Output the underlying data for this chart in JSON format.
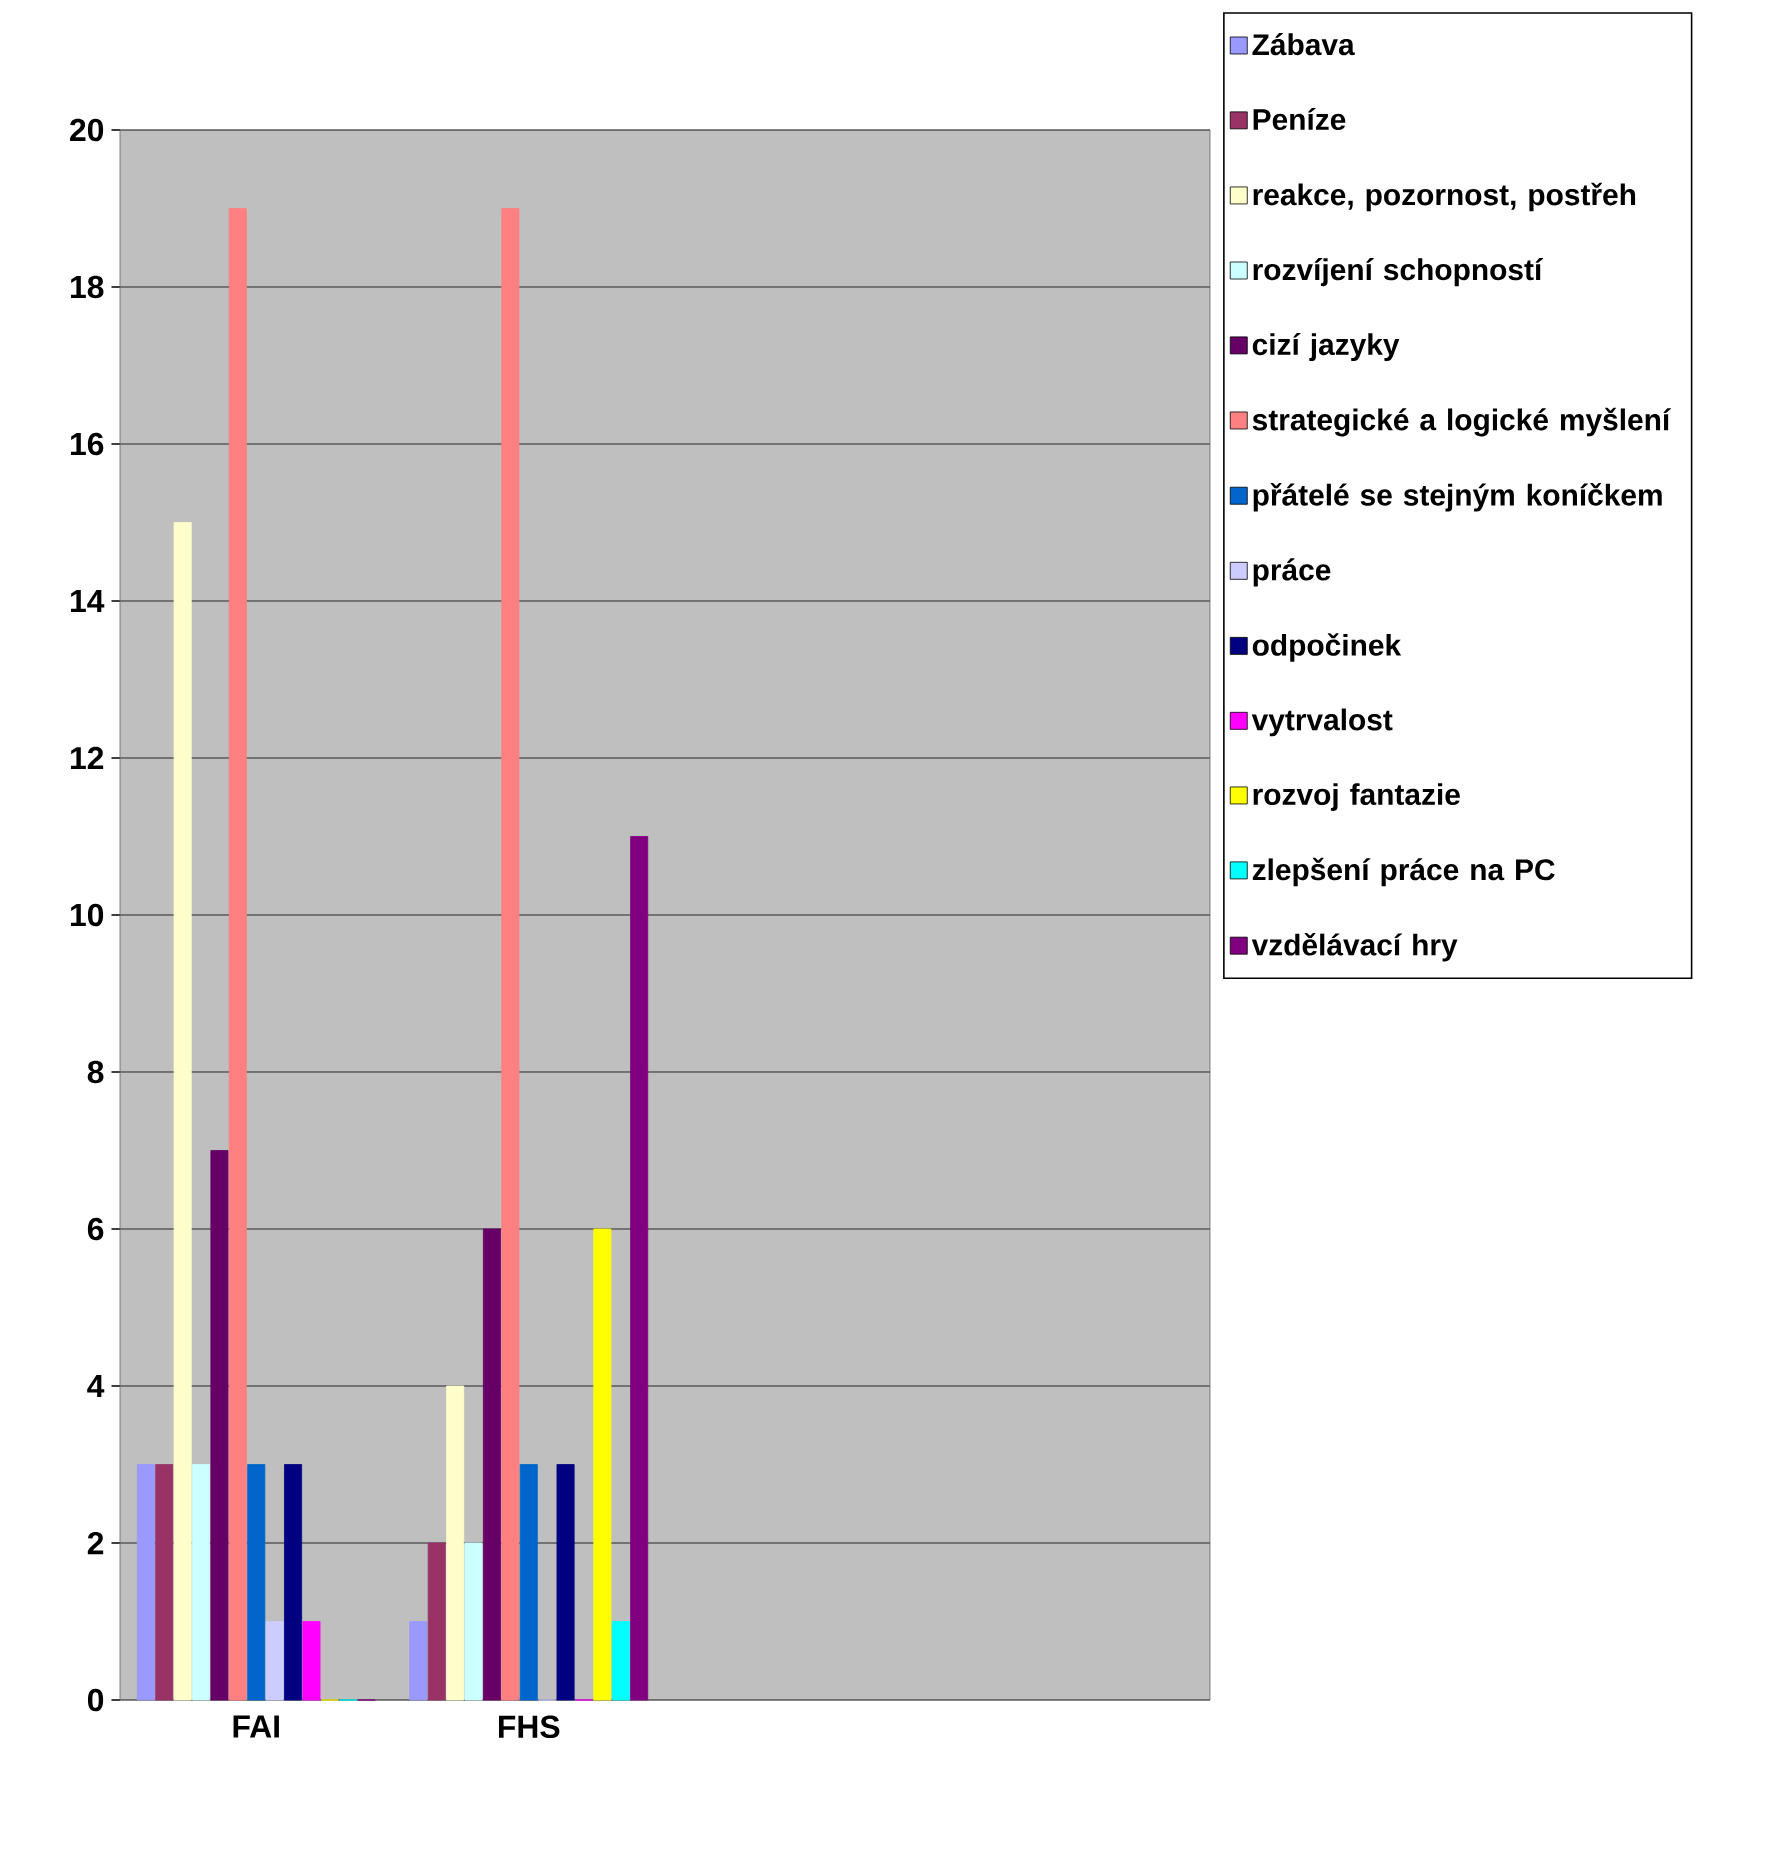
{
  "chart_data": {
    "type": "bar",
    "categories": [
      "FAI",
      "FHS",
      null,
      null
    ],
    "series": [
      {
        "name": "Zábava",
        "color": "#9999ff",
        "values": [
          3,
          1,
          null,
          null
        ]
      },
      {
        "name": "Peníze",
        "color": "#993366",
        "values": [
          3,
          2,
          null,
          null
        ]
      },
      {
        "name": "reakce, pozornost, postřeh",
        "color": "#ffffcc",
        "values": [
          15,
          4,
          null,
          null
        ]
      },
      {
        "name": "rozvíjení schopností",
        "color": "#ccffff",
        "values": [
          3,
          2,
          null,
          null
        ]
      },
      {
        "name": "cizí jazyky",
        "color": "#660066",
        "values": [
          7,
          6,
          null,
          null
        ]
      },
      {
        "name": "strategické a logické myšlení",
        "color": "#ff8080",
        "values": [
          19,
          19,
          null,
          null
        ]
      },
      {
        "name": "přátelé se stejným koníčkem",
        "color": "#0066cc",
        "values": [
          3,
          3,
          null,
          null
        ]
      },
      {
        "name": "práce",
        "color": "#ccccff",
        "values": [
          1,
          0,
          null,
          null
        ]
      },
      {
        "name": "odpočinek",
        "color": "#000080",
        "values": [
          3,
          3,
          null,
          null
        ]
      },
      {
        "name": "vytrvalost",
        "color": "#ff00ff",
        "values": [
          1,
          0,
          null,
          null
        ]
      },
      {
        "name": "rozvoj fantazie",
        "color": "#ffff00",
        "values": [
          0,
          6,
          null,
          null
        ]
      },
      {
        "name": "zlepšení práce na PC",
        "color": "#00ffff",
        "values": [
          0,
          1,
          null,
          null
        ]
      },
      {
        "name": "vzdělávací hry",
        "color": "#800080",
        "values": [
          0,
          11,
          null,
          null
        ]
      }
    ],
    "ylim": [
      0,
      20
    ],
    "yticks": [
      0,
      2,
      4,
      6,
      8,
      10,
      12,
      14,
      16,
      18,
      20
    ],
    "grid": "y",
    "legend": "right"
  }
}
